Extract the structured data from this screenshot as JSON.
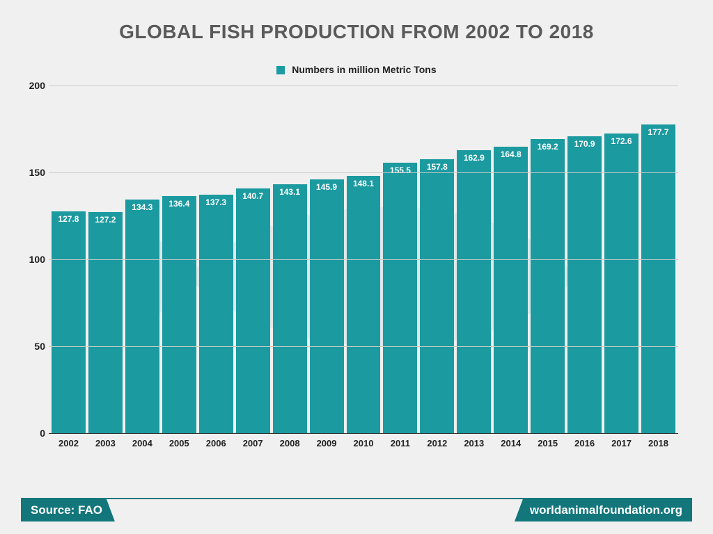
{
  "chart": {
    "type": "bar",
    "title": "GLOBAL FISH PRODUCTION FROM 2002 TO 2018",
    "title_color": "#5a5a5a",
    "title_fontsize": 28,
    "legend_label": "Numbers in million  Metric Tons",
    "categories": [
      "2002",
      "2003",
      "2004",
      "2005",
      "2006",
      "2007",
      "2008",
      "2009",
      "2010",
      "2011",
      "2012",
      "2013",
      "2014",
      "2015",
      "2016",
      "2017",
      "2018"
    ],
    "values": [
      127.8,
      127.2,
      134.3,
      136.4,
      137.3,
      140.7,
      143.1,
      145.9,
      148.1,
      155.5,
      157.8,
      162.9,
      164.8,
      169.2,
      170.9,
      172.6,
      177.7
    ],
    "bar_color": "#1b9aa0",
    "bar_label_color": "#ffffff",
    "bar_label_fontsize": 12,
    "ylim": [
      0,
      200
    ],
    "yticks": [
      0,
      50,
      100,
      150,
      200
    ],
    "grid_color": "#cccccc",
    "axis_label_color": "#222222",
    "axis_label_fontsize": 14,
    "background_color": "#f0f0f0",
    "watermark_color": "#1b9aa0"
  },
  "footer": {
    "source_label": "Source: FAO",
    "site_label": "worldanimalfoundation.org",
    "chip_bg": "#12767b",
    "chip_text_color": "#ffffff",
    "rule_color": "#12767b"
  }
}
